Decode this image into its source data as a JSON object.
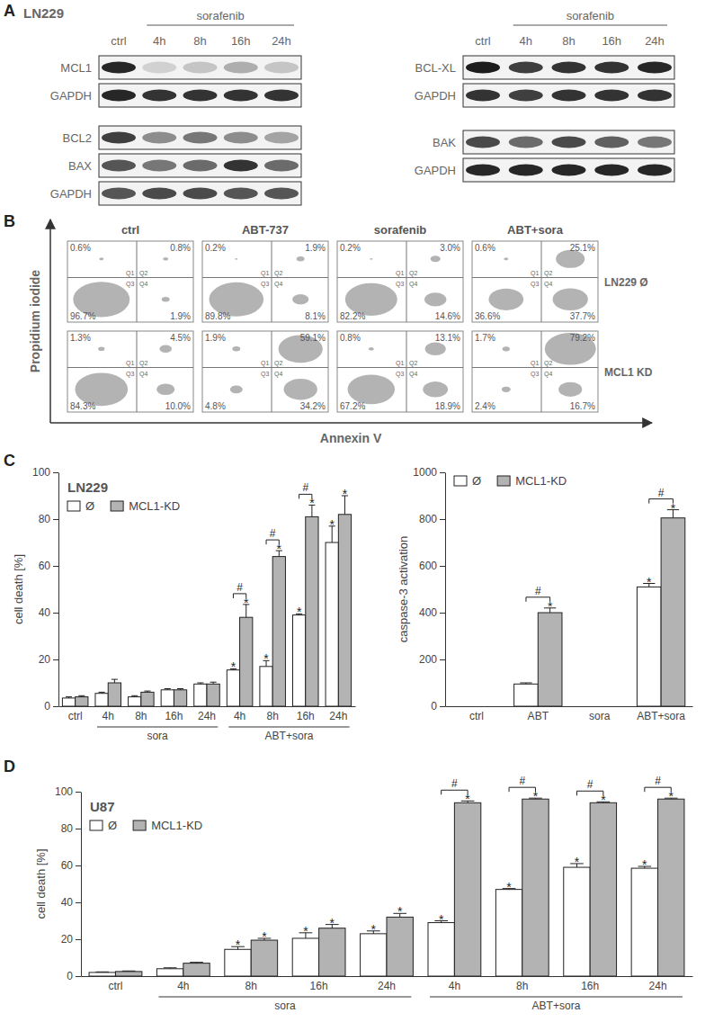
{
  "panel_labels": [
    "A",
    "B",
    "C",
    "D"
  ],
  "western_blots": {
    "cell_line": "LN229",
    "columns": [
      {
        "treatment": "sorafenib",
        "treatment_span": [
          1,
          4
        ],
        "lanes": [
          "ctrl",
          "4h",
          "8h",
          "16h",
          "24h"
        ],
        "blots": [
          [
            {
              "protein": "MCL1",
              "intensity": [
                0.9,
                0.15,
                0.2,
                0.3,
                0.2
              ]
            },
            {
              "protein": "GAPDH",
              "intensity": [
                0.9,
                0.85,
                0.85,
                0.85,
                0.85
              ]
            }
          ],
          [
            {
              "protein": "BCL2",
              "intensity": [
                0.8,
                0.45,
                0.55,
                0.45,
                0.35
              ]
            },
            {
              "protein": "BAX",
              "intensity": [
                0.7,
                0.55,
                0.6,
                0.85,
                0.6
              ]
            },
            {
              "protein": "GAPDH",
              "intensity": [
                0.7,
                0.75,
                0.75,
                0.7,
                0.7
              ]
            }
          ]
        ]
      },
      {
        "treatment": "sorafenib",
        "treatment_span": [
          1,
          4
        ],
        "lanes": [
          "ctrl",
          "4h",
          "8h",
          "16h",
          "24h"
        ],
        "blots": [
          [
            {
              "protein": "BCL-XL",
              "intensity": [
                0.95,
                0.8,
                0.85,
                0.85,
                0.9
              ]
            },
            {
              "protein": "GAPDH",
              "intensity": [
                0.85,
                0.8,
                0.85,
                0.85,
                0.85
              ]
            }
          ],
          [
            {
              "protein": "BAK",
              "intensity": [
                0.75,
                0.6,
                0.75,
                0.65,
                0.55
              ]
            },
            {
              "protein": "GAPDH",
              "intensity": [
                0.9,
                0.9,
                0.9,
                0.9,
                0.9
              ]
            }
          ]
        ]
      }
    ]
  },
  "flow_cytometry": {
    "x_label": "Annexin V",
    "y_label": "Propidium iodide",
    "treatments": [
      "ctrl",
      "ABT-737",
      "sorafenib",
      "ABT+sora"
    ],
    "quadrant_names": [
      "Q1",
      "Q2",
      "Q3",
      "Q4"
    ],
    "rows": [
      {
        "label": "LN229 Ø",
        "plots": [
          {
            "values": [
              0.6,
              0.8,
              96.7,
              1.9
            ],
            "value_labels": [
              "0.6%",
              "0.8%",
              "96.7%",
              "1.9%"
            ]
          },
          {
            "values": [
              0.2,
              1.9,
              89.8,
              8.1
            ],
            "value_labels": [
              "0.2%",
              "1.9%",
              "89.8%",
              "8.1%"
            ]
          },
          {
            "values": [
              0.2,
              3.0,
              82.2,
              14.6
            ],
            "value_labels": [
              "0.2%",
              "3.0%",
              "82.2%",
              "14.6%"
            ]
          },
          {
            "values": [
              0.6,
              25.1,
              36.6,
              37.7
            ],
            "value_labels": [
              "0.6%",
              "25.1%",
              "36.6%",
              "37.7%"
            ]
          }
        ]
      },
      {
        "label": "MCL1 KD",
        "plots": [
          {
            "values": [
              1.3,
              4.5,
              84.3,
              10.0
            ],
            "value_labels": [
              "1.3%",
              "4.5%",
              "84.3%",
              "10.0%"
            ]
          },
          {
            "values": [
              1.9,
              59.1,
              4.8,
              34.2
            ],
            "value_labels": [
              "1.9%",
              "59.1%",
              "4.8%",
              "34.2%"
            ]
          },
          {
            "values": [
              0.8,
              13.1,
              67.2,
              18.9
            ],
            "value_labels": [
              "0.8%",
              "13.1%",
              "67.2%",
              "18.9%"
            ]
          },
          {
            "values": [
              1.7,
              79.2,
              2.4,
              16.7
            ],
            "value_labels": [
              "1.7%",
              "79.2%",
              "2.4%",
              "16.7%"
            ]
          }
        ]
      }
    ]
  },
  "chart_data": [
    {
      "type": "bar",
      "title": "LN229",
      "y_label": "cell death [%]",
      "categories": [
        "ctrl",
        "4h",
        "8h",
        "16h",
        "24h",
        "4h",
        "8h",
        "16h",
        "24h"
      ],
      "groups": [
        {
          "label": "sora",
          "from": 1,
          "to": 4
        },
        {
          "label": "ABT+sora",
          "from": 5,
          "to": 8
        }
      ],
      "ylim": [
        0,
        100
      ],
      "yticks": [
        0,
        20,
        40,
        60,
        80,
        100
      ],
      "legend": "upper left",
      "series": [
        {
          "name": "Ø",
          "color": "#ffffff",
          "values": [
            3.5,
            5.5,
            4,
            7,
            9.5,
            15.5,
            17,
            39,
            70
          ],
          "errors": [
            0.5,
            0.5,
            0.5,
            0.5,
            0.5,
            0.5,
            2.5,
            0.5,
            7
          ],
          "significance": [
            null,
            null,
            null,
            null,
            null,
            "*",
            "*",
            "*",
            "*"
          ]
        },
        {
          "name": "MCL1-KD",
          "color": "#b3b3b3",
          "values": [
            4,
            10,
            6,
            7,
            9.5,
            38,
            64,
            81,
            82
          ],
          "errors": [
            0.5,
            1.5,
            0.5,
            0.5,
            0.8,
            5.5,
            2.5,
            5,
            8
          ],
          "significance": [
            null,
            null,
            null,
            null,
            null,
            "*",
            "*",
            "*",
            "*"
          ]
        }
      ],
      "comparisons": [
        null,
        null,
        null,
        null,
        null,
        "#",
        "#",
        "#",
        null
      ]
    },
    {
      "type": "bar",
      "y_label": "caspase-3 activation",
      "categories": [
        "ctrl",
        "ABT",
        "sora",
        "ABT+sora"
      ],
      "ylim": [
        0,
        1000
      ],
      "yticks": [
        0,
        200,
        400,
        600,
        800,
        1000
      ],
      "legend": "upper left",
      "series": [
        {
          "name": "Ø",
          "color": "#ffffff",
          "values": [
            0,
            95,
            0,
            510
          ],
          "errors": [
            0,
            5,
            0,
            15
          ],
          "significance": [
            null,
            null,
            null,
            "*"
          ]
        },
        {
          "name": "MCL1-KD",
          "color": "#b3b3b3",
          "values": [
            0,
            400,
            0,
            805
          ],
          "errors": [
            0,
            20,
            0,
            35
          ],
          "significance": [
            null,
            "*",
            null,
            "*"
          ]
        }
      ],
      "comparisons": [
        null,
        "#",
        null,
        "#"
      ]
    },
    {
      "type": "bar",
      "title": "U87",
      "y_label": "cell death [%]",
      "categories": [
        "ctrl",
        "4h",
        "8h",
        "16h",
        "24h",
        "4h",
        "8h",
        "16h",
        "24h"
      ],
      "groups": [
        {
          "label": "sora",
          "from": 1,
          "to": 4
        },
        {
          "label": "ABT+sora",
          "from": 5,
          "to": 8
        }
      ],
      "ylim": [
        0,
        100
      ],
      "yticks": [
        0,
        20,
        40,
        60,
        80,
        100
      ],
      "legend": "upper left",
      "series": [
        {
          "name": "Ø",
          "color": "#ffffff",
          "values": [
            2,
            4,
            14.5,
            20.5,
            23,
            29,
            47,
            59,
            58.5
          ],
          "errors": [
            0.3,
            0.5,
            1.5,
            3,
            1.5,
            1,
            0.5,
            2,
            1
          ],
          "significance": [
            null,
            null,
            "*",
            "*",
            "*",
            "*",
            "*",
            "*",
            "*"
          ]
        },
        {
          "name": "MCL1-KD",
          "color": "#b3b3b3",
          "values": [
            2.5,
            7,
            19.5,
            26,
            32,
            94,
            96,
            94,
            96
          ],
          "errors": [
            0.3,
            0.5,
            1,
            2,
            2,
            1,
            0.5,
            0.5,
            0.5
          ],
          "significance": [
            null,
            null,
            "*",
            "*",
            "*",
            "*",
            "*",
            "*",
            "*"
          ]
        }
      ],
      "comparisons": [
        null,
        null,
        null,
        null,
        null,
        "#",
        "#",
        "#",
        "#"
      ]
    }
  ]
}
